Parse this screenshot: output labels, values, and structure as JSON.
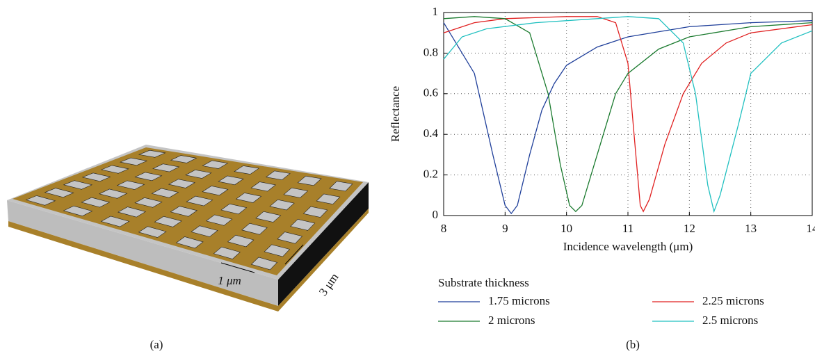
{
  "panel_a": {
    "width_label": "1 μm",
    "thickness_label": "3 μm",
    "caption": "(a)"
  },
  "chart_data": {
    "type": "line",
    "caption": "(b)",
    "x_label": "Incidence wavelength (μm)",
    "y_label": "Reflectance",
    "xlim": [
      8,
      14
    ],
    "xticks": [
      8,
      9,
      10,
      11,
      12,
      13,
      14
    ],
    "ylim": [
      0,
      1
    ],
    "yticks": [
      0,
      0.2,
      0.4,
      0.6,
      0.8,
      1
    ],
    "grid": true,
    "legend_title": "Substrate thickness",
    "legend_position": "bottom",
    "series": [
      {
        "name": "1.75 microns",
        "color": "#1f3f9a",
        "x": [
          8,
          8.5,
          8.8,
          9.0,
          9.1,
          9.2,
          9.4,
          9.6,
          9.8,
          10,
          10.5,
          11,
          12,
          13,
          14
        ],
        "values": [
          0.95,
          0.7,
          0.3,
          0.05,
          0.01,
          0.05,
          0.3,
          0.52,
          0.65,
          0.74,
          0.83,
          0.88,
          0.93,
          0.95,
          0.96
        ]
      },
      {
        "name": "2.25 microns",
        "color": "#e02020",
        "x": [
          8,
          8.5,
          9,
          10,
          10.5,
          10.8,
          11,
          11.1,
          11.2,
          11.25,
          11.35,
          11.6,
          11.9,
          12.2,
          12.6,
          13,
          14
        ],
        "values": [
          0.9,
          0.95,
          0.97,
          0.98,
          0.98,
          0.95,
          0.75,
          0.4,
          0.05,
          0.02,
          0.08,
          0.35,
          0.6,
          0.75,
          0.85,
          0.9,
          0.94
        ]
      },
      {
        "name": "2 microns",
        "color": "#1a7a2e",
        "x": [
          8,
          8.5,
          9,
          9.4,
          9.7,
          9.9,
          10.05,
          10.15,
          10.25,
          10.5,
          10.8,
          11,
          11.5,
          12,
          13,
          14
        ],
        "values": [
          0.97,
          0.98,
          0.97,
          0.9,
          0.6,
          0.25,
          0.05,
          0.02,
          0.05,
          0.3,
          0.6,
          0.7,
          0.82,
          0.88,
          0.93,
          0.95
        ]
      },
      {
        "name": "2.5 microns",
        "color": "#20c0c0",
        "x": [
          8,
          8.3,
          8.7,
          9.5,
          10.5,
          11,
          11.5,
          11.9,
          12.1,
          12.3,
          12.4,
          12.5,
          12.8,
          13,
          13.5,
          14
        ],
        "values": [
          0.77,
          0.88,
          0.92,
          0.95,
          0.97,
          0.98,
          0.97,
          0.85,
          0.6,
          0.15,
          0.02,
          0.1,
          0.45,
          0.7,
          0.85,
          0.91
        ]
      }
    ]
  }
}
